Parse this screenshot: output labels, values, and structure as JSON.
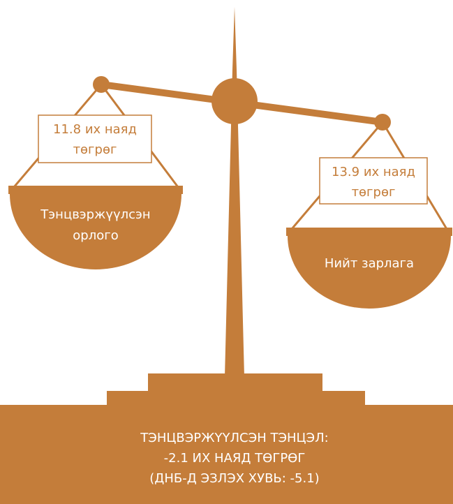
{
  "left": {
    "amount": [
      "11.8 их наяд",
      "төгрөг"
    ],
    "label": [
      "Тэнцвэржүүлсэн",
      "орлого"
    ]
  },
  "right": {
    "amount": [
      "13.9 их наяд",
      "төгрөг"
    ],
    "label": [
      "Нийт зарлага"
    ]
  },
  "base": {
    "lines": [
      "ТЭНЦВЭРЖҮҮЛСЭН ТЭНЦЭЛ:",
      "-2.1 ИХ НАЯД ТӨГРӨГ",
      "(ДНБ-Д ЭЗЛЭХ ХУВЬ: -5.1)"
    ]
  }
}
